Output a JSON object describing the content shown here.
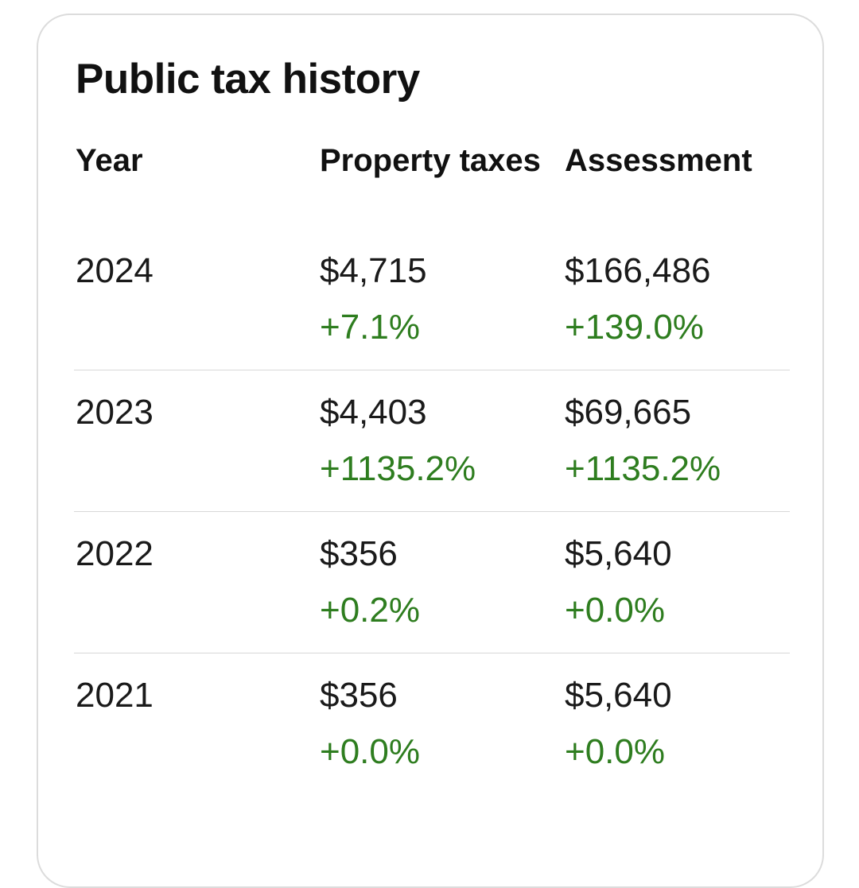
{
  "title": "Public tax history",
  "columns": [
    "Year",
    "Property taxes",
    "Assessment"
  ],
  "rows": [
    {
      "year": "2024",
      "tax": "$4,715",
      "tax_change": "+7.1%",
      "assessment": "$166,486",
      "assessment_change": "+139.0%"
    },
    {
      "year": "2023",
      "tax": "$4,403",
      "tax_change": "+1135.2%",
      "assessment": "$69,665",
      "assessment_change": "+1135.2%"
    },
    {
      "year": "2022",
      "tax": "$356",
      "tax_change": "+0.2%",
      "assessment": "$5,640",
      "assessment_change": "+0.0%"
    },
    {
      "year": "2021",
      "tax": "$356",
      "tax_change": "+0.0%",
      "assessment": "$5,640",
      "assessment_change": "+0.0%"
    }
  ],
  "colors": {
    "positive_change": "#2e7d1f"
  }
}
